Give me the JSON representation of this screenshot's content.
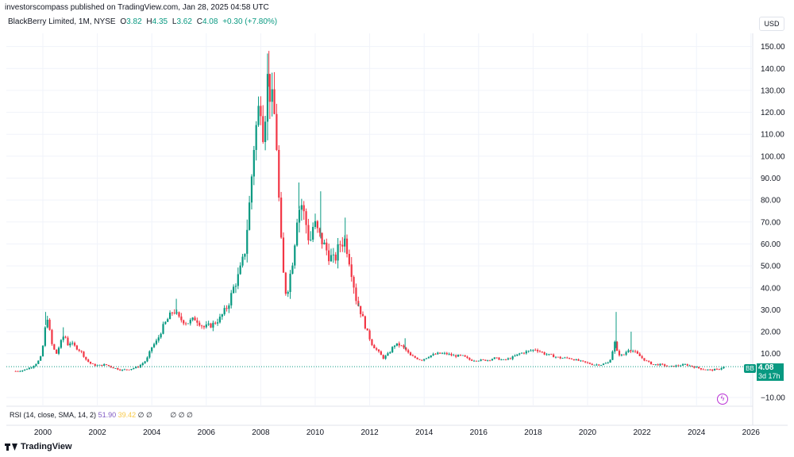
{
  "header": {
    "publisher": "investorscompass published on TradingView.com, Jan 28, 2025 04:58 UTC",
    "currency": "USD"
  },
  "legend": {
    "symbol": "BlackBerry Limited, 1M, NYSE",
    "o_label": "O",
    "o_value": "3.82",
    "h_label": "H",
    "h_value": "4.35",
    "l_label": "L",
    "l_value": "3.62",
    "c_label": "C",
    "c_value": "4.08",
    "change": "+0.30 (+7.80%)"
  },
  "price_tag": {
    "ticker": "BB",
    "price": "4.08",
    "countdown": "3d 17h"
  },
  "rsi": {
    "label": "RSI (14, close, SMA, 14, 2)",
    "value1": "51.90",
    "value2": "39.42",
    "extra1": "∅ ∅",
    "extra2": "∅ ∅ ∅"
  },
  "footer": {
    "brand": "TradingView"
  },
  "colors": {
    "up": "#089981",
    "down": "#f23645",
    "current_line": "#089981"
  },
  "chart_data": {
    "type": "candlestick",
    "title": "BlackBerry Limited, 1M, NYSE",
    "y_ticks": [
      -10,
      10,
      20,
      30,
      40,
      50,
      60,
      70,
      80,
      90,
      100,
      110,
      120,
      130,
      140,
      150
    ],
    "y_tick_labels": [
      "−10.00",
      "10.00",
      "20.00",
      "30.00",
      "40.00",
      "50.00",
      "60.00",
      "70.00",
      "80.00",
      "90.00",
      "100.00",
      "110.00",
      "120.00",
      "130.00",
      "140.00",
      "150.00"
    ],
    "x_tick_labels": [
      "2000",
      "2002",
      "2004",
      "2006",
      "2008",
      "2010",
      "2012",
      "2014",
      "2016",
      "2018",
      "2020",
      "2022",
      "2024",
      "2026"
    ],
    "x_tick_years": [
      2000,
      2002,
      2004,
      2006,
      2008,
      2010,
      2012,
      2014,
      2016,
      2018,
      2020,
      2022,
      2024,
      2026
    ],
    "last_price": 4.08,
    "price_series": [
      [
        1999.0,
        2
      ],
      [
        1999.3,
        2.5
      ],
      [
        1999.6,
        4
      ],
      [
        1999.8,
        6
      ],
      [
        1999.95,
        9
      ],
      [
        2000.05,
        18
      ],
      [
        2000.15,
        28
      ],
      [
        2000.25,
        20
      ],
      [
        2000.35,
        13
      ],
      [
        2000.5,
        10
      ],
      [
        2000.65,
        15
      ],
      [
        2000.8,
        19
      ],
      [
        2000.9,
        14
      ],
      [
        2001.0,
        15
      ],
      [
        2001.2,
        13
      ],
      [
        2001.4,
        11
      ],
      [
        2001.6,
        7
      ],
      [
        2001.8,
        5
      ],
      [
        2002.0,
        4.5
      ],
      [
        2002.3,
        5
      ],
      [
        2002.6,
        3.5
      ],
      [
        2002.9,
        2.5
      ],
      [
        2003.2,
        3
      ],
      [
        2003.5,
        4
      ],
      [
        2003.8,
        7
      ],
      [
        2004.0,
        13
      ],
      [
        2004.2,
        16
      ],
      [
        2004.4,
        22
      ],
      [
        2004.6,
        26
      ],
      [
        2004.8,
        30
      ],
      [
        2005.0,
        26
      ],
      [
        2005.3,
        24
      ],
      [
        2005.6,
        26
      ],
      [
        2005.9,
        22
      ],
      [
        2006.2,
        23
      ],
      [
        2006.5,
        26
      ],
      [
        2006.8,
        32
      ],
      [
        2007.0,
        40
      ],
      [
        2007.2,
        46
      ],
      [
        2007.4,
        55
      ],
      [
        2007.6,
        80
      ],
      [
        2007.75,
        105
      ],
      [
        2007.9,
        120
      ],
      [
        2008.0,
        125
      ],
      [
        2008.1,
        110
      ],
      [
        2008.25,
        135
      ],
      [
        2008.4,
        125
      ],
      [
        2008.55,
        115
      ],
      [
        2008.7,
        70
      ],
      [
        2008.8,
        50
      ],
      [
        2008.9,
        38
      ],
      [
        2009.0,
        40
      ],
      [
        2009.2,
        55
      ],
      [
        2009.35,
        75
      ],
      [
        2009.5,
        78
      ],
      [
        2009.65,
        70
      ],
      [
        2009.8,
        60
      ],
      [
        2009.95,
        70
      ],
      [
        2010.1,
        65
      ],
      [
        2010.3,
        60
      ],
      [
        2010.5,
        55
      ],
      [
        2010.7,
        52
      ],
      [
        2010.9,
        60
      ],
      [
        2011.1,
        62
      ],
      [
        2011.3,
        50
      ],
      [
        2011.5,
        35
      ],
      [
        2011.7,
        28
      ],
      [
        2011.9,
        20
      ],
      [
        2012.1,
        14
      ],
      [
        2012.3,
        11
      ],
      [
        2012.5,
        8
      ],
      [
        2012.7,
        10
      ],
      [
        2012.9,
        14
      ],
      [
        2013.1,
        14
      ],
      [
        2013.3,
        12
      ],
      [
        2013.5,
        9
      ],
      [
        2013.7,
        8
      ],
      [
        2013.9,
        7
      ],
      [
        2014.2,
        9
      ],
      [
        2014.5,
        10
      ],
      [
        2014.8,
        10
      ],
      [
        2015.1,
        9
      ],
      [
        2015.4,
        9
      ],
      [
        2015.7,
        7
      ],
      [
        2016.0,
        7
      ],
      [
        2016.3,
        7
      ],
      [
        2016.6,
        8
      ],
      [
        2016.9,
        7
      ],
      [
        2017.2,
        8
      ],
      [
        2017.5,
        10
      ],
      [
        2017.8,
        11
      ],
      [
        2018.1,
        12
      ],
      [
        2018.4,
        10
      ],
      [
        2018.7,
        9
      ],
      [
        2019.0,
        8
      ],
      [
        2019.3,
        8
      ],
      [
        2019.6,
        7
      ],
      [
        2019.9,
        6
      ],
      [
        2020.2,
        5
      ],
      [
        2020.5,
        5
      ],
      [
        2020.8,
        6
      ],
      [
        2021.0,
        15
      ],
      [
        2021.1,
        10
      ],
      [
        2021.3,
        9
      ],
      [
        2021.5,
        12
      ],
      [
        2021.7,
        11
      ],
      [
        2021.9,
        9
      ],
      [
        2022.1,
        7
      ],
      [
        2022.4,
        5
      ],
      [
        2022.7,
        5
      ],
      [
        2023.0,
        4
      ],
      [
        2023.3,
        4.5
      ],
      [
        2023.6,
        5
      ],
      [
        2023.9,
        4
      ],
      [
        2024.2,
        3
      ],
      [
        2024.5,
        2.5
      ],
      [
        2024.8,
        2.8
      ],
      [
        2025.0,
        4.08
      ]
    ],
    "spikes": [
      [
        2000.1,
        29
      ],
      [
        2000.75,
        22
      ],
      [
        2004.9,
        35
      ],
      [
        2008.3,
        148
      ],
      [
        2009.4,
        88
      ],
      [
        2010.2,
        84
      ],
      [
        2011.1,
        72
      ],
      [
        2011.6,
        33
      ],
      [
        2013.3,
        17
      ],
      [
        2021.05,
        29
      ],
      [
        2021.6,
        20
      ]
    ]
  }
}
